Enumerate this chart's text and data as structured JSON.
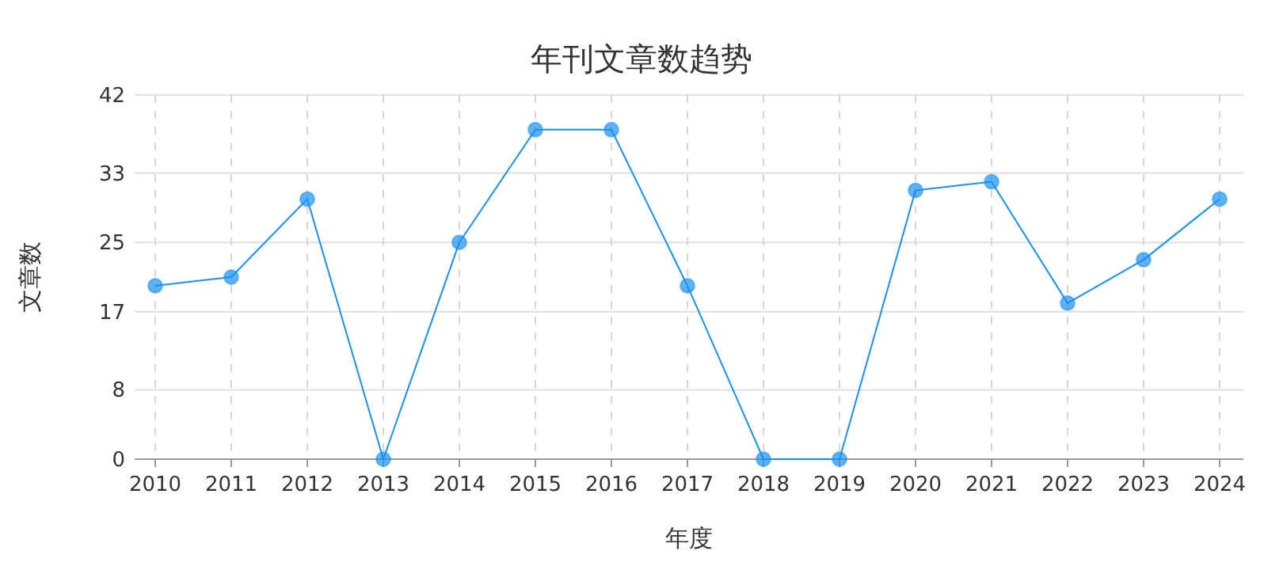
{
  "chart_data": {
    "type": "line",
    "title": "年刊文章数趋势",
    "xlabel": "年度",
    "ylabel": "文章数",
    "categories": [
      "2010",
      "2011",
      "2012",
      "2013",
      "2014",
      "2015",
      "2016",
      "2017",
      "2018",
      "2019",
      "2020",
      "2021",
      "2022",
      "2023",
      "2024"
    ],
    "series": [
      {
        "color": "#1a90f0",
        "values": [
          20,
          21,
          30,
          0,
          25,
          38,
          38,
          20,
          0,
          0,
          31,
          32,
          18,
          23,
          30
        ]
      }
    ],
    "ylim": [
      0,
      42
    ],
    "yticks": [
      0,
      8,
      17,
      25,
      33,
      42
    ],
    "grid": true,
    "marker": "circle",
    "line_style": "solid"
  }
}
